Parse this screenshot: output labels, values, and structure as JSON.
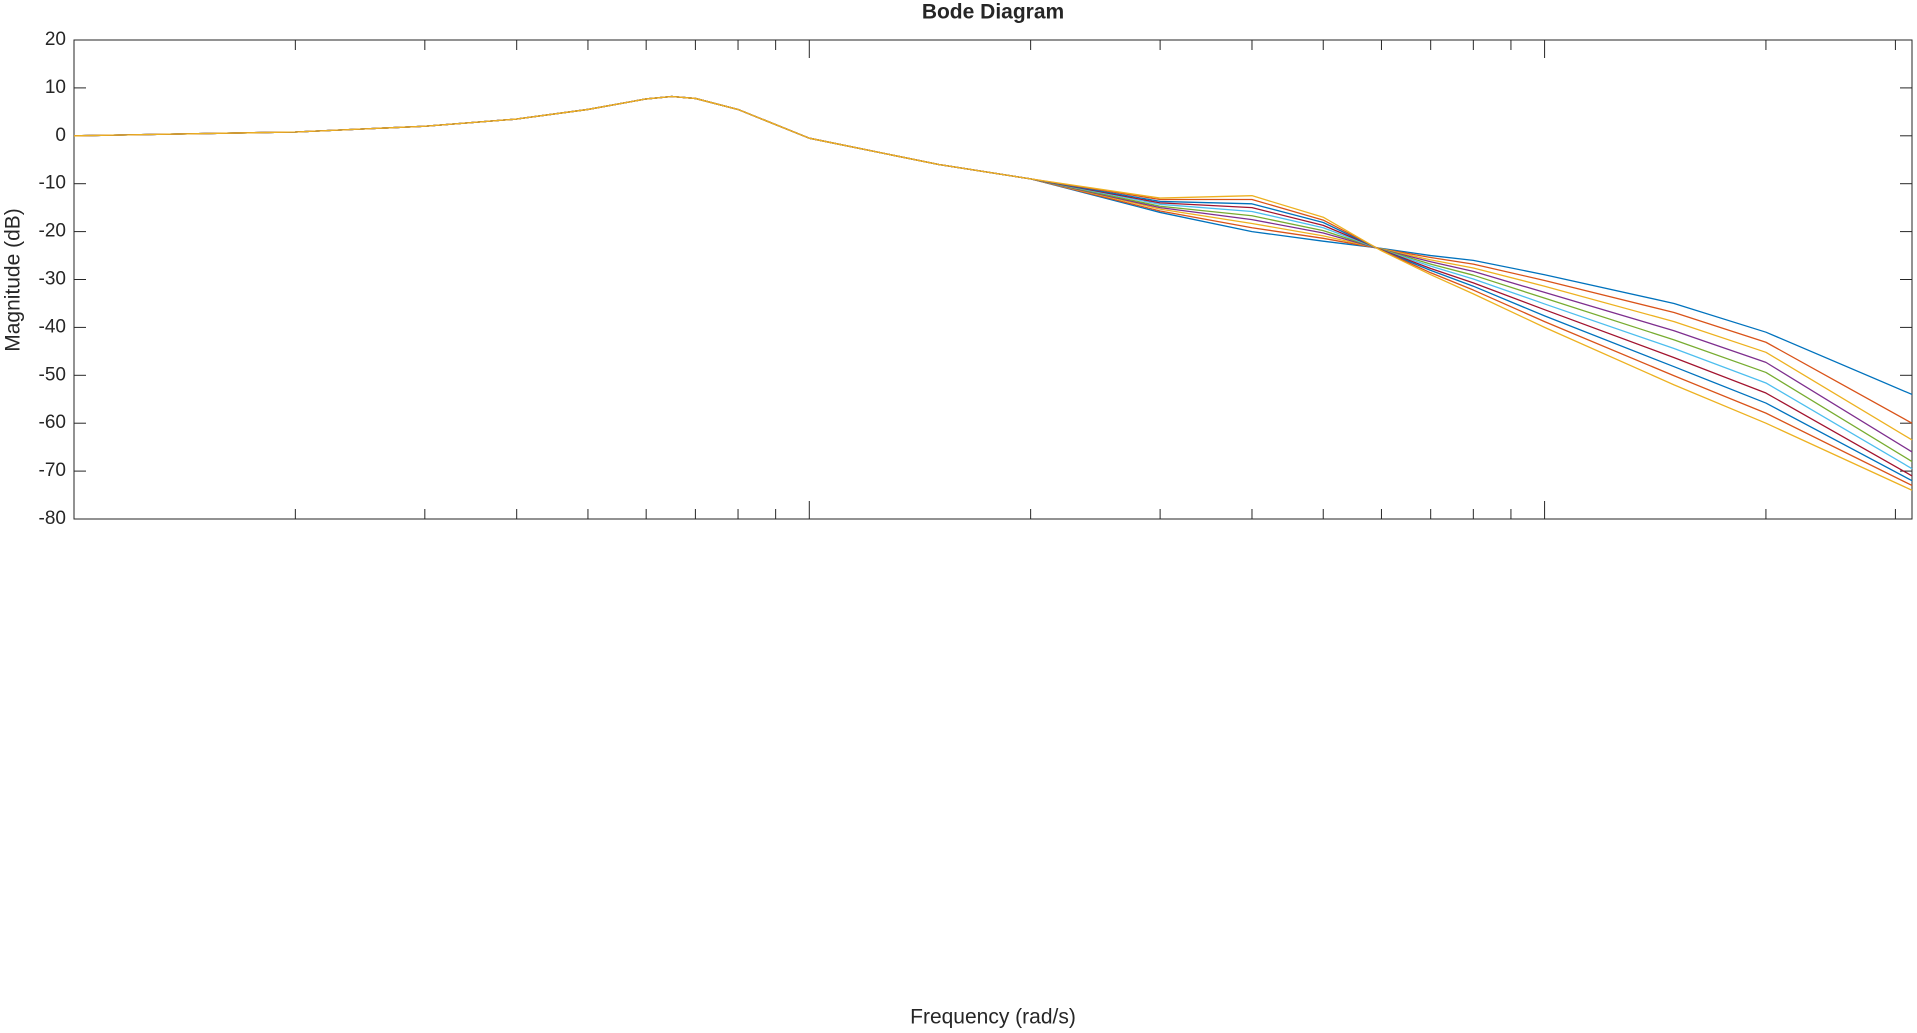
{
  "chart_data": {
    "type": "line",
    "title": "Bode Diagram",
    "x_label": "Frequency  (rad/s)",
    "y_label": "Magnitude (dB)",
    "x_scale": "log",
    "xlim": [
      1,
      316
    ],
    "xticks": [
      1,
      10,
      100
    ],
    "ylim": [
      -80,
      20
    ],
    "yticks": [
      -80,
      -70,
      -60,
      -50,
      -40,
      -30,
      -20,
      -10,
      0,
      10,
      20
    ],
    "grid": false,
    "x": [
      1,
      2,
      3,
      4,
      5,
      6,
      6.5,
      7,
      8,
      10,
      15,
      20,
      30,
      40,
      50,
      60,
      70,
      80,
      100,
      150,
      200,
      316
    ],
    "series": [
      {
        "color": "#0072BD",
        "values": [
          0,
          0.8,
          2,
          3.5,
          5.5,
          7.7,
          8.2,
          7.8,
          5.5,
          -0.5,
          -6,
          -9,
          -16,
          -20,
          -22,
          -23.5,
          -25,
          -26,
          -29,
          -35,
          -41,
          -54
        ]
      },
      {
        "color": "#D95319",
        "values": [
          0,
          0.8,
          2,
          3.5,
          5.5,
          7.7,
          8.2,
          7.8,
          5.5,
          -0.5,
          -6,
          -9,
          -15.7,
          -19.2,
          -21.4,
          -23.6,
          -25.4,
          -26.8,
          -30.2,
          -36.9,
          -43.1,
          -60
        ]
      },
      {
        "color": "#EDB120",
        "values": [
          0,
          0.8,
          2,
          3.5,
          5.5,
          7.7,
          8.2,
          7.8,
          5.5,
          -0.5,
          -6,
          -9,
          -15.3,
          -18.3,
          -20.9,
          -23.6,
          -25.9,
          -27.6,
          -31.4,
          -38.8,
          -45.2,
          -63.5
        ]
      },
      {
        "color": "#7E2F8E",
        "values": [
          0,
          0.8,
          2,
          3.5,
          5.5,
          7.7,
          8.2,
          7.8,
          5.5,
          -0.5,
          -6,
          -9,
          -15,
          -17.5,
          -20.3,
          -23.7,
          -26.3,
          -28.3,
          -32.7,
          -40.7,
          -47.3,
          -66
        ]
      },
      {
        "color": "#77AC30",
        "values": [
          0,
          0.8,
          2,
          3.5,
          5.5,
          7.7,
          8.2,
          7.8,
          5.5,
          -0.5,
          -6,
          -9,
          -14.7,
          -16.7,
          -19.8,
          -23.7,
          -26.8,
          -29.1,
          -33.9,
          -42.6,
          -49.4,
          -68
        ]
      },
      {
        "color": "#4DBEEE",
        "values": [
          0,
          0.8,
          2,
          3.5,
          5.5,
          7.7,
          8.2,
          7.8,
          5.5,
          -0.5,
          -6,
          -9,
          -14.3,
          -15.8,
          -19.2,
          -23.8,
          -27.2,
          -29.9,
          -35.1,
          -44.4,
          -51.6,
          -69.5
        ]
      },
      {
        "color": "#A2142F",
        "values": [
          0,
          0.8,
          2,
          3.5,
          5.5,
          7.7,
          8.2,
          7.8,
          5.5,
          -0.5,
          -6,
          -9,
          -14,
          -15,
          -18.7,
          -23.8,
          -27.7,
          -30.7,
          -36.3,
          -46.3,
          -53.7,
          -71
        ]
      },
      {
        "color": "#0072BD",
        "values": [
          0,
          0.8,
          2,
          3.5,
          5.5,
          7.7,
          8.2,
          7.8,
          5.5,
          -0.5,
          -6,
          -9,
          -13.7,
          -14.2,
          -18.1,
          -23.9,
          -28.1,
          -31.4,
          -37.6,
          -48.2,
          -55.8,
          -72
        ]
      },
      {
        "color": "#D95319",
        "values": [
          0,
          0.8,
          2,
          3.5,
          5.5,
          7.7,
          8.2,
          7.8,
          5.5,
          -0.5,
          -6,
          -9,
          -13.3,
          -13.3,
          -17.6,
          -23.9,
          -28.6,
          -32.2,
          -38.8,
          -50.1,
          -57.9,
          -73
        ]
      },
      {
        "color": "#EDB120",
        "values": [
          0,
          0.8,
          2,
          3.5,
          5.5,
          7.7,
          8.2,
          7.8,
          5.5,
          -0.5,
          -6,
          -9,
          -13,
          -12.5,
          -17,
          -24,
          -29,
          -33,
          -40,
          -52,
          -60,
          -74
        ]
      }
    ]
  }
}
